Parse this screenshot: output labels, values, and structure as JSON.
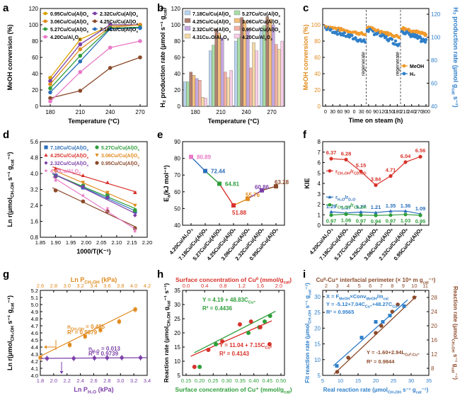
{
  "panels": {
    "a": {
      "label": "a",
      "type": "line",
      "xlabel": "Temperature (°C)",
      "ylabel": "MeOH conversion (%)",
      "x": [
        180,
        210,
        240,
        270
      ],
      "ylim": [
        0,
        120
      ],
      "yticks": [
        0,
        20,
        40,
        60,
        80,
        100,
        120
      ],
      "series": [
        {
          "name": "0.95Cu/Cu(Al)O",
          "sub": "x",
          "color": "#d9a400",
          "values": [
            35,
            82,
            99,
            100
          ]
        },
        {
          "name": "2.32Cu/Cu(Al)O",
          "sub": "x",
          "color": "#7b3fa8",
          "values": [
            31,
            76,
            100,
            100
          ]
        },
        {
          "name": "3.06Cu/Cu(Al)O",
          "sub": "x",
          "color": "#e08a1e",
          "values": [
            27,
            70,
            97,
            100
          ]
        },
        {
          "name": "4.25Cu/Cu(Al)O",
          "sub": "x",
          "color": "#8b4a2b",
          "values": [
            10,
            19,
            47,
            60
          ]
        },
        {
          "name": "5.27Cu/Cu(Al)O",
          "sub": "x",
          "color": "#2e9e3a",
          "values": [
            22,
            62,
            96,
            97
          ]
        },
        {
          "name": "7.18Cu/Cu(Al)O",
          "sub": "x",
          "color": "#2a6ebb",
          "values": [
            17,
            55,
            95,
            96
          ]
        },
        {
          "name": "4.20Cu/Al",
          "sub": "2",
          "tail": "O",
          "sub2": "3",
          "color": "#e879c6",
          "values": [
            6,
            42,
            72,
            80
          ]
        }
      ]
    },
    "b": {
      "label": "b",
      "type": "bar",
      "xlabel": "Temperature (°C)",
      "ylabel": "H₂ production rate (μmol s⁻¹ g",
      "ylabel_sub": "cat",
      "ylabel_tail": ")",
      "categories": [
        "180",
        "210",
        "240",
        "270"
      ],
      "ylim": [
        0,
        120
      ],
      "yticks": [
        0,
        20,
        40,
        60,
        80,
        100,
        120
      ],
      "series": [
        {
          "name": "7.18Cu/Cu(Al)O",
          "sub": "x",
          "color": "#b9d3ee",
          "values": [
            30,
            68,
            80,
            95
          ]
        },
        {
          "name": "5.27Cu/Cu(Al)O",
          "sub": "x",
          "color": "#a9dca6",
          "values": [
            30,
            75,
            86,
            99
          ]
        },
        {
          "name": "4.25Cu/Cu(Al)O",
          "sub": "x",
          "color": "#b08070",
          "values": [
            42,
            95,
            109,
            110
          ]
        },
        {
          "name": "3.06Cu/Cu(Al)O",
          "sub": "x",
          "color": "#f3bf7d",
          "values": [
            38,
            90,
            105,
            107
          ]
        },
        {
          "name": "2.32Cu/Cu(Al)O",
          "sub": "x",
          "color": "#c4a8e0",
          "values": [
            34,
            84,
            95,
            100
          ]
        },
        {
          "name": "0.95Cu/Cu(Al)O",
          "sub": "x",
          "color": "#f3b1a6",
          "values": [
            32,
            42,
            47,
            76
          ]
        },
        {
          "name": "4.31Cu₂O/Al",
          "sub": "2",
          "tail": "O",
          "sub2": "3",
          "color": "#f4d9a8",
          "values": [
            11,
            35,
            78,
            70
          ]
        },
        {
          "name": "4.20Cu/Al",
          "sub": "2",
          "tail": "O",
          "sub2": "3",
          "color": "#f7cde6",
          "values": [
            10,
            44,
            68,
            80
          ]
        }
      ]
    },
    "c": {
      "label": "c",
      "type": "scatter-dual",
      "xlabel": "Time on steam (h)",
      "ylabel_left": "MeOH conversion (%)",
      "ylabel_right": "H₂ production rate (μmol g",
      "ylabel_right_sub": "cat",
      "ylabel_right_tail": " s⁻¹)",
      "xticks": [
        "0",
        "30",
        "60",
        "90",
        "0",
        "30",
        "60",
        "90",
        "120",
        "150",
        "180",
        "210",
        "240",
        "270",
        "300"
      ],
      "yleft": [
        0,
        20,
        40,
        60,
        80,
        100
      ],
      "yright": [
        40,
        60,
        80,
        100,
        120
      ],
      "regenerate": [
        "regenerate",
        "regenerate"
      ],
      "legend": [
        {
          "name": "MeOH",
          "color": "#f19a2c"
        },
        {
          "name": "H₂",
          "color": "#2f7fc9"
        }
      ],
      "segments": [
        {
          "meoh": [
            98,
            88
          ],
          "h2": [
            108,
            96
          ]
        },
        {
          "meoh": [
            97,
            85
          ],
          "h2": [
            107,
            94
          ]
        },
        {
          "meoh": [
            96,
            88
          ],
          "h2": [
            106,
            96
          ]
        }
      ]
    },
    "d": {
      "label": "d",
      "type": "scatter-fit",
      "xlabel": "1000/T(K⁻¹)",
      "ylabel": "Ln r(μmol",
      "ylabel_sub": "CH₃OH",
      "ylabel_tail": " s⁻¹ g",
      "ylabel_sub2": "cat",
      "ylabel_tail2": "⁻¹)",
      "xlim": [
        1.85,
        2.2
      ],
      "ylim": [
        0.8,
        5.6
      ],
      "xticks": [
        1.85,
        1.9,
        1.95,
        2.0,
        2.05,
        2.1,
        2.15,
        2.2
      ],
      "yticks": [
        0.8,
        1.6,
        2.4,
        3.2,
        4.0,
        4.8,
        5.6
      ],
      "x": [
        1.9,
        1.99,
        2.07,
        2.16
      ],
      "series": [
        {
          "name": "7.18Cu/Cu(Al)O",
          "sub": "x",
          "color": "#2a6ebb",
          "marker": "square",
          "values": [
            3.9,
            3.3,
            2.8,
            2.1
          ]
        },
        {
          "name": "5.27Cu/Cu(Al)O",
          "sub": "x",
          "color": "#2e9e3a",
          "marker": "circle",
          "values": [
            3.85,
            3.4,
            2.95,
            2.15
          ]
        },
        {
          "name": "4.25Cu/Cu(Al)O",
          "sub": "x",
          "color": "#d8322b",
          "marker": "triangle",
          "values": [
            4.25,
            3.9,
            3.55,
            3.05
          ]
        },
        {
          "name": "3.06Cu/Cu(Al)O",
          "sub": "x",
          "color": "#e08a1e",
          "marker": "tridown",
          "values": [
            4.1,
            3.55,
            3.05,
            2.4
          ]
        },
        {
          "name": "2.32Cu/Cu(Al)O",
          "sub": "x",
          "color": "#7b3fa8",
          "marker": "diamond",
          "values": [
            3.85,
            3.35,
            2.8,
            1.9
          ]
        },
        {
          "name": "0.95Cu/Cu(Al)O",
          "sub": "x",
          "color": "#8b4a2b",
          "marker": "circle",
          "values": [
            3.15,
            2.6,
            2.1,
            1.25
          ]
        },
        {
          "name": "4.20Cu/Al",
          "sub": "2",
          "tail": "O",
          "sub2": "3",
          "color": "#e879c6",
          "marker": "star",
          "values": [
            3.65,
            2.9,
            2.25,
            1.1
          ]
        }
      ]
    },
    "e": {
      "label": "e",
      "type": "line",
      "ylabel": "E",
      "ylabel_sub": "a",
      "ylabel_tail": "(kJ mol⁻¹)",
      "ylim": [
        40,
        90
      ],
      "yticks": [
        40,
        50,
        60,
        70,
        80,
        90
      ],
      "categories": [
        "4.20Cu/Al₂O₃",
        "7.18Cu/Cu(Al)Oₓ",
        "5.27Cu/Cu(Al)Oₓ",
        "4.25Cu/Cu(Al)Oₓ",
        "3.06Cu/Cu(Al)Oₓ",
        "2.32Cu/Cu(Al)Oₓ",
        "0.95Cu/Cu(Al)Oₓ"
      ],
      "values": [
        80.89,
        72.44,
        64.81,
        51.88,
        55.76,
        60.86,
        63.28
      ],
      "labels": [
        "80.89",
        "72.44",
        "64.81",
        "51.88",
        "55.76",
        "60.86",
        "63.28"
      ],
      "colors": [
        "#e879c6",
        "#2a6ebb",
        "#2e9e3a",
        "#d8322b",
        "#e08a1e",
        "#7b3fa8",
        "#8b4a2b"
      ]
    },
    "f": {
      "label": "f",
      "type": "line",
      "ylabel": "KIE",
      "ylim": [
        0,
        8
      ],
      "yticks": [
        0,
        1,
        2,
        3,
        4,
        5,
        6,
        7,
        8
      ],
      "categories": [
        "4.20Cu/Al₂O₃",
        "7.18Cu/Cu(Al)Oₓ",
        "5.27Cu/Cu(Al)Oₓ",
        "4.25Cu/Cu(Al)Oₓ",
        "3.06Cu/Cu(Al)Oₓ",
        "2.32Cu/Cu(Al)Oₓ",
        "0.95Cu/Cu(Al)Oₓ"
      ],
      "series": [
        {
          "name": "r",
          "sub": "CH₃OH",
          "tail": "/r",
          "sub2": "CD₃OD",
          "color": "#d8322b",
          "values": [
            6.37,
            6.28,
            5.15,
            3.84,
            4.71,
            6.04,
            6.56
          ],
          "labels": [
            "6.37",
            "6.28",
            "5.15",
            "3.84",
            "4.71",
            "6.04",
            "6.56"
          ],
          "labelcolor": "#d8322b"
        },
        {
          "name": "r",
          "sub": "H₂O",
          "tail": "/r",
          "sub2": "D₂O",
          "color": "#2a6ebb",
          "values": [
            1.29,
            1.17,
            1.27,
            1.21,
            1.35,
            1.36,
            1.09
          ],
          "labels": [
            "1.29",
            "1.17",
            "1.27",
            "1.21",
            "1.35",
            "1.36",
            "1.09"
          ],
          "labelcolor": "#2a6ebb"
        },
        {
          "name": "r",
          "sub": "CH₃OH",
          "tail": "/r",
          "sub2": "CH₃OH",
          "color": "#2e9e3a",
          "values": [
            0.97,
            1.06,
            0.97,
            0.94,
            0.97,
            1.03,
            0.95
          ],
          "labels": [
            "0.97",
            "1.06",
            "0.97",
            "0.94",
            "0.97",
            "1.03",
            "0.95"
          ],
          "labelcolor": "#2e9e3a"
        }
      ]
    },
    "g": {
      "label": "g",
      "type": "scatter-dual",
      "xlabel_bottom": "Ln P",
      "xlabel_bottom_sub": "H₂O",
      "xlabel_bottom_tail": " (kPa)",
      "xlabel_top": "Ln P",
      "xlabel_top_sub": "CH₃OH",
      "xlabel_top_tail": " (kPa)",
      "ylabel": "Ln r(μmol",
      "ylabel_sub": "CH₃OH",
      "ylabel_tail": " s⁻¹ g",
      "ylabel_sub2": "cat",
      "ylabel_tail2": "⁻¹)",
      "xbottom": [
        1.8,
        2.0,
        2.2,
        2.4,
        2.6,
        2.8,
        3.0,
        3.2,
        3.4
      ],
      "xtop": [
        2.6,
        2.8,
        3.0,
        3.2,
        3.4,
        3.6,
        3.8,
        4.0,
        4.2
      ],
      "ylim": [
        4.0,
        5.2
      ],
      "yticks": [
        4.0,
        4.1,
        4.2,
        4.3,
        4.4,
        4.5,
        4.6,
        4.7,
        4.8,
        4.9,
        5.0,
        5.1,
        5.2
      ],
      "orange": {
        "color": "#e08a1e",
        "x": [
          2.6,
          3.04,
          3.27,
          3.5,
          3.78,
          4.02
        ],
        "values": [
          4.25,
          4.43,
          4.55,
          4.64,
          4.76,
          4.93
        ],
        "n_label": "n",
        "n_sub": "CH₃OH",
        "n_value": " = 0.485",
        "r2": "R² = 0.9879"
      },
      "purple": {
        "color": "#7b3fa8",
        "x": [
          1.9,
          2.3,
          2.61,
          2.8,
          3.02,
          3.3
        ],
        "values": [
          4.24,
          4.24,
          4.245,
          4.248,
          4.25,
          4.25
        ],
        "n_label": "n",
        "n_sub": "H₂O",
        "n_value": " = 0.013",
        "r2": "R² = 0.9739"
      }
    },
    "h": {
      "label": "h",
      "type": "scatter-dual",
      "xlabel_top": "Surface concentration of Cu⁰ (mmol/g",
      "xlabel_top_sub": "cat",
      "xlabel_top_tail": ")",
      "xlabel_bottom": "Surface concentration of Cu⁺ (mmol/g",
      "xlabel_bottom_sub": "cat",
      "xlabel_bottom_tail": ")",
      "ylabel": "Reaction rate (μmol",
      "ylabel_sub": "CH₃OH",
      "ylabel_tail": " g",
      "ylabel_sub2": "cat",
      "ylabel_tail2": "⁻¹ s⁻¹)",
      "xtop": [
        0.0,
        0.4,
        0.8,
        1.2,
        1.6,
        2.0
      ],
      "xbottom": [
        0.15,
        0.2,
        0.25,
        0.3,
        0.35,
        0.4,
        0.45,
        0.5
      ],
      "ylim": [
        5,
        35
      ],
      "yticks": [
        5,
        10,
        15,
        20,
        25,
        30,
        35
      ],
      "green": {
        "color": "#2e9e3a",
        "x": [
          0.2,
          0.26,
          0.38,
          0.42,
          0.44,
          0.46
        ],
        "values": [
          8,
          16,
          20,
          22,
          24,
          26
        ],
        "eq": "Y = 4.19 + 48.83C",
        "eq_sub": "Cu⁺",
        "r2": "R² = 0.4436"
      },
      "red": {
        "color": "#d8322b",
        "x": [
          0.18,
          0.48,
          0.78,
          1.16,
          1.4,
          1.6,
          1.8
        ],
        "values": [
          8,
          14,
          17,
          23,
          24,
          22,
          16
        ],
        "eq": "Y = 11.04 + 7.15C",
        "eq_sub": "Cu⁰",
        "r2": "R² = 0.4143"
      }
    },
    "i": {
      "label": "i",
      "type": "scatter-dual",
      "xlabel_top": "Cu⁰-Cu⁺ interfacial perimeter (× 10⁹ m g",
      "xlabel_top_sub": "cat",
      "xlabel_top_tail": "⁻¹)",
      "xlabel_bottom": "Real reaction rate (μmol",
      "xlabel_bottom_sub": "CH₃OH",
      "xlabel_bottom_tail": " s⁻¹ g",
      "xlabel_bottom_sub2": "cat",
      "xlabel_bottom_tail2": "⁻¹)",
      "ylabel_left": "Fit reaction rate (μmol",
      "ylabel_left_sub": "CH₃OH",
      "ylabel_left_tail": " s⁻¹ g",
      "ylabel_left_sub2": "cat",
      "ylabel_left_tail2": "⁻¹)",
      "ylabel_right": "Reaction rate (μmol",
      "ylabel_right_sub": "CH₃OH",
      "ylabel_right_tail": " s⁻¹ g",
      "ylabel_right_sub2": "cat",
      "ylabel_right_tail2": "⁻¹)",
      "xbottom": [
        5,
        10,
        15,
        20,
        25,
        30,
        35
      ],
      "xtop": [
        2,
        3,
        4,
        5,
        6,
        7,
        8,
        9,
        10,
        11
      ],
      "yleft": [
        5,
        10,
        15,
        20,
        25,
        30
      ],
      "yright": [
        8,
        12,
        16,
        20,
        24,
        28
      ],
      "blue": {
        "color": "#2f7fc9",
        "x": [
          9,
          16,
          20,
          22,
          24,
          28
        ],
        "values": [
          8,
          17,
          22,
          22,
          24,
          27
        ],
        "eq1": "X = F",
        "eq1_sub": "MeOH",
        "eq1_tail": "×Conv",
        "eq1_sub2": "MeOH",
        "eq1_tail2": "/m",
        "eq1_sub3": "cat",
        "eq2": "Y = -5.12+7.04C",
        "eq2_sub": "Cu⁺",
        "eq2_tail": "+48.27C",
        "eq2_sub2": "Cu⁰",
        "r2": "R² = 0.9565"
      },
      "brown": {
        "color": "#8b4a2b",
        "x": [
          3,
          4,
          6.5,
          7,
          8,
          8.5,
          10
        ],
        "values": [
          7,
          11,
          18,
          20,
          24,
          26,
          28
        ],
        "eq": "Y = -1.60+2.94L",
        "eq_sub": "Cu⁰-Cu⁺",
        "r2": "R² = 0.9844"
      }
    }
  }
}
